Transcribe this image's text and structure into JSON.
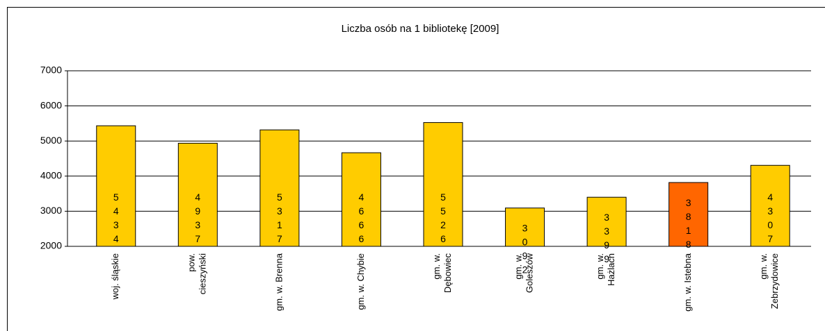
{
  "chart_data": {
    "type": "bar",
    "title": "Liczba osób na 1 bibliotekę [2009]",
    "categories": [
      "woj. śląskie",
      "pow. cieszyński",
      "gm. w. Brenna",
      "gm. w. Chybie",
      "gm. w. Dębowiec",
      "gm. w. Goleszów",
      "gm. w. Hażlach",
      "gm. w. Istebna",
      "gm. w. Zebrzydowice"
    ],
    "values": [
      5434,
      4937,
      5317,
      4666,
      5526,
      3092,
      3399,
      3818,
      4307
    ],
    "colors": [
      "#ffcc00",
      "#ffcc00",
      "#ffcc00",
      "#ffcc00",
      "#ffcc00",
      "#ffcc00",
      "#ffcc00",
      "#ff6600",
      "#ffcc00"
    ],
    "ylim": [
      2000,
      7000
    ],
    "yticks": [
      2000,
      3000,
      4000,
      5000,
      6000,
      7000
    ],
    "grid": true
  }
}
